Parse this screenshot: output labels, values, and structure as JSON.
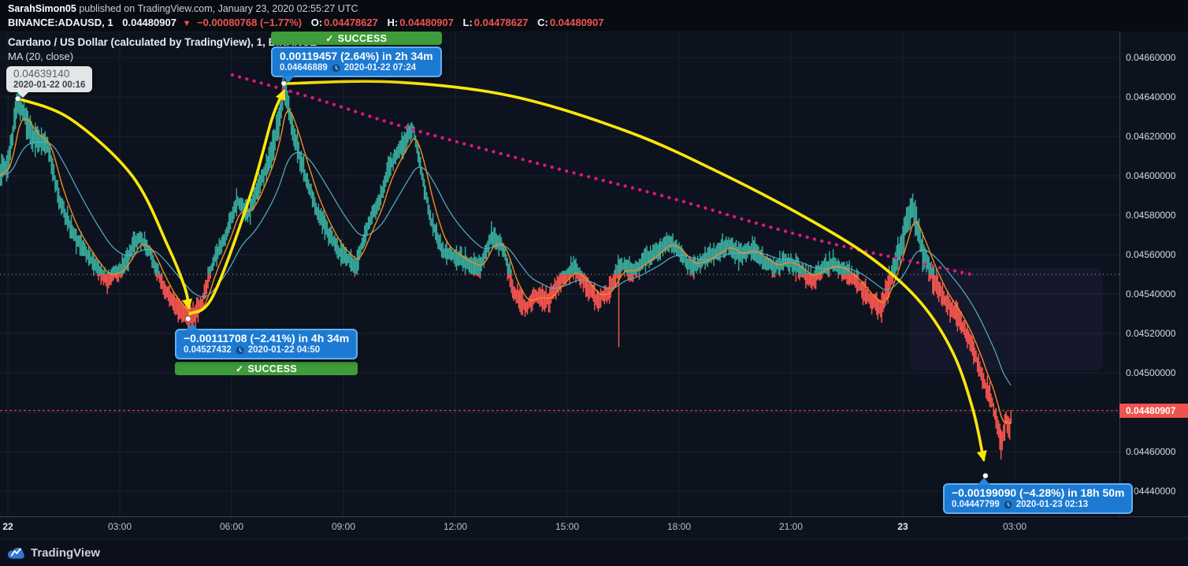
{
  "header": {
    "user": "SarahSimon05",
    "published": " published on TradingView.com, January 23, 2020 02:55:27 UTC",
    "symbol": "BINANCE:ADAUSD, 1",
    "last_price": "0.04480907",
    "down_triangle": "▼",
    "change": "−0.00080768 (−1.77%)",
    "o_label": "O:",
    "o_value": "0.04478627",
    "h_label": "H:",
    "h_value": "0.04480907",
    "l_label": "L:",
    "l_value": "0.04478627",
    "c_label": "C:",
    "c_value": "0.04480907"
  },
  "legend": {
    "title": "Cardano / US Dollar (calculated by TradingView), 1, BINANCE",
    "ma": "MA (20, close)"
  },
  "tooltip": {
    "price": "0.04639140",
    "datetime": "2020-01-22 00:16"
  },
  "callouts": [
    {
      "line1": "0.00119457 (2.64%) in 2h 34m",
      "price": "0.04646889",
      "datetime": "2020-01-22  07:24",
      "check": "✓",
      "badge": "SUCCESS"
    },
    {
      "line1": "−0.00111708 (−2.41%) in 4h 34m",
      "price": "0.04527432",
      "datetime": "2020-01-22  04:50",
      "check": "✓",
      "badge": "SUCCESS"
    },
    {
      "line1": "−0.00199090 (−4.28%) in 18h 50m",
      "price": "0.04447799",
      "datetime": "2020-01-23  02:13"
    }
  ],
  "footer": {
    "brand": "TradingView"
  },
  "chart_data": {
    "type": "candlestick",
    "title": "Cardano / US Dollar (calculated by TradingView), 1, BINANCE",
    "symbol": "BINANCE:ADAUSD",
    "interval": "1",
    "baseline": 0.0455,
    "current_price_value": 0.04480907,
    "current_price_label": "0.04480907",
    "y_axis": {
      "range": [
        0.04425,
        0.04673
      ],
      "ticks": [
        {
          "value": 0.0466,
          "label": "0.04660000"
        },
        {
          "value": 0.0464,
          "label": "0.04640000"
        },
        {
          "value": 0.0462,
          "label": "0.04620000"
        },
        {
          "value": 0.046,
          "label": "0.04600000"
        },
        {
          "value": 0.0458,
          "label": "0.04580000"
        },
        {
          "value": 0.0456,
          "label": "0.04560000"
        },
        {
          "value": 0.0454,
          "label": "0.04540000"
        },
        {
          "value": 0.0452,
          "label": "0.04520000"
        },
        {
          "value": 0.045,
          "label": "0.04500000"
        },
        {
          "value": 0.0448,
          "label": ""
        },
        {
          "value": 0.0446,
          "label": "0.04460000"
        },
        {
          "value": 0.0444,
          "label": "0.04440000"
        }
      ]
    },
    "x_axis": {
      "start": "2020-01-22 00:00",
      "ticks": [
        {
          "t": 0,
          "label": "22",
          "date": true
        },
        {
          "t": 180,
          "label": "03:00"
        },
        {
          "t": 360,
          "label": "06:00"
        },
        {
          "t": 540,
          "label": "09:00"
        },
        {
          "t": 720,
          "label": "12:00"
        },
        {
          "t": 900,
          "label": "15:00"
        },
        {
          "t": 1080,
          "label": "18:00"
        },
        {
          "t": 1260,
          "label": "21:00"
        },
        {
          "t": 1440,
          "label": "23",
          "date": true
        },
        {
          "t": 1620,
          "label": "03:00"
        }
      ]
    },
    "colors": {
      "up": "#37a79a",
      "down": "#f1544f",
      "ma_fast": "#f78a1e",
      "ma_slow": "#56aec8",
      "arrow": "#ffe60a",
      "trend": "#e21682",
      "baseline_line": "#d8dce6",
      "current_price": "#f0534f",
      "callout_blue": "#1d7ad2",
      "success_green": "#3f9c3a"
    },
    "price_path": [
      [
        -20,
        0.046
      ],
      [
        0,
        0.046052
      ],
      [
        16,
        0.046392
      ],
      [
        41,
        0.046192
      ],
      [
        64,
        0.046152
      ],
      [
        83,
        0.045872
      ],
      [
        108,
        0.045692
      ],
      [
        134,
        0.045572
      ],
      [
        159,
        0.045472
      ],
      [
        184,
        0.045532
      ],
      [
        210,
        0.045692
      ],
      [
        229,
        0.045612
      ],
      [
        248,
        0.045452
      ],
      [
        267,
        0.045352
      ],
      [
        286,
        0.045292
      ],
      [
        292,
        0.045274
      ],
      [
        312,
        0.045352
      ],
      [
        331,
        0.045572
      ],
      [
        350,
        0.045692
      ],
      [
        369,
        0.045872
      ],
      [
        388,
        0.045812
      ],
      [
        407,
        0.045972
      ],
      [
        426,
        0.046132
      ],
      [
        439,
        0.046332
      ],
      [
        444,
        0.046469
      ],
      [
        460,
        0.046212
      ],
      [
        477,
        0.046012
      ],
      [
        496,
        0.045832
      ],
      [
        515,
        0.045712
      ],
      [
        534,
        0.045612
      ],
      [
        560,
        0.045552
      ],
      [
        580,
        0.045752
      ],
      [
        600,
        0.045892
      ],
      [
        611,
        0.046032
      ],
      [
        630,
        0.046132
      ],
      [
        652,
        0.04624
      ],
      [
        668,
        0.045972
      ],
      [
        681,
        0.045772
      ],
      [
        700,
        0.045612
      ],
      [
        719,
        0.045592
      ],
      [
        741,
        0.045552
      ],
      [
        760,
        0.045532
      ],
      [
        778,
        0.045692
      ],
      [
        795,
        0.045652
      ],
      [
        814,
        0.045412
      ],
      [
        833,
        0.045332
      ],
      [
        852,
        0.045392
      ],
      [
        871,
        0.045372
      ],
      [
        878,
        0.045424
      ],
      [
        890,
        0.045472
      ],
      [
        910,
        0.045532
      ],
      [
        929,
        0.045452
      ],
      [
        948,
        0.045372
      ],
      [
        967,
        0.045412
      ],
      [
        986,
        0.045552
      ],
      [
        1005,
        0.045512
      ],
      [
        1024,
        0.045572
      ],
      [
        1043,
        0.045612
      ],
      [
        1062,
        0.045672
      ],
      [
        1081,
        0.045612
      ],
      [
        1100,
        0.045532
      ],
      [
        1120,
        0.045572
      ],
      [
        1139,
        0.045612
      ],
      [
        1158,
        0.045652
      ],
      [
        1177,
        0.045592
      ],
      [
        1196,
        0.045632
      ],
      [
        1215,
        0.045572
      ],
      [
        1234,
        0.045532
      ],
      [
        1253,
        0.045572
      ],
      [
        1272,
        0.045532
      ],
      [
        1291,
        0.045472
      ],
      [
        1310,
        0.045532
      ],
      [
        1329,
        0.045552
      ],
      [
        1348,
        0.045512
      ],
      [
        1368,
        0.045452
      ],
      [
        1387,
        0.045372
      ],
      [
        1406,
        0.045332
      ],
      [
        1425,
        0.045532
      ],
      [
        1444,
        0.045732
      ],
      [
        1455,
        0.04586
      ],
      [
        1469,
        0.045652
      ],
      [
        1488,
        0.045492
      ],
      [
        1507,
        0.045372
      ],
      [
        1527,
        0.045292
      ],
      [
        1546,
        0.045172
      ],
      [
        1565,
        0.045012
      ],
      [
        1573,
        0.04493
      ],
      [
        1584,
        0.044852
      ],
      [
        1590,
        0.04476
      ],
      [
        1598,
        0.04466
      ],
      [
        1603,
        0.0447
      ],
      [
        1607,
        0.04478
      ],
      [
        1611,
        0.0447
      ],
      [
        1615,
        0.044809
      ]
    ],
    "special_wicks": [
      [
        983,
        0.04513
      ],
      [
        1598,
        0.04456
      ]
    ],
    "anchors": [
      [
        16,
        0.0463914
      ],
      [
        290,
        0.0452743
      ],
      [
        444,
        0.0464689
      ],
      [
        1573,
        0.044478
      ]
    ],
    "arrows": [
      {
        "dir": "down",
        "points": [
          [
            16,
            0.046392
          ],
          [
            100,
            0.04629
          ],
          [
            200,
            0.046
          ],
          [
            258,
            0.04564
          ],
          [
            285,
            0.04543
          ],
          [
            291,
            0.04533
          ]
        ]
      },
      {
        "dir": "up",
        "points": [
          [
            293,
            0.0453
          ],
          [
            330,
            0.04539
          ],
          [
            390,
            0.0459
          ],
          [
            425,
            0.04629
          ],
          [
            444,
            0.04643
          ]
        ]
      },
      {
        "dir": "down",
        "points": [
          [
            447,
            0.046468
          ],
          [
            621,
            0.046476
          ],
          [
            811,
            0.046404
          ],
          [
            1001,
            0.04622
          ],
          [
            1153,
            0.046004
          ],
          [
            1293,
            0.045772
          ],
          [
            1394,
            0.045572
          ],
          [
            1470,
            0.045352
          ],
          [
            1521,
            0.0451
          ],
          [
            1553,
            0.044812
          ],
          [
            1570,
            0.04456
          ]
        ]
      }
    ],
    "trend_dotted": [
      [
        361,
        0.046512
      ],
      [
        494,
        0.046392
      ],
      [
        646,
        0.04624
      ],
      [
        875,
        0.046044
      ],
      [
        1061,
        0.045892
      ],
      [
        1204,
        0.04576
      ],
      [
        1331,
        0.045652
      ],
      [
        1445,
        0.045572
      ],
      [
        1549,
        0.0455
      ]
    ]
  }
}
